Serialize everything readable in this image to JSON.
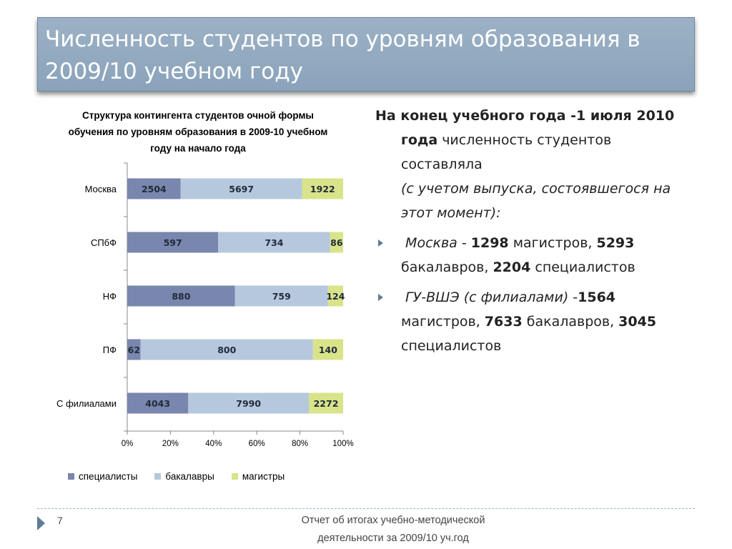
{
  "title": "Численность студентов по уровням образования в 2009/10 учебном году",
  "chart_data": {
    "type": "bar",
    "orientation": "horizontal",
    "stacking": "percent",
    "title": "Структура контингента студентов очной формы обучения по уровням образования в 2009-10 учебном году на начало года",
    "categories": [
      "Москва",
      "СПбФ",
      "НФ",
      "ПФ",
      "С филиалами"
    ],
    "series": [
      {
        "name": "специалисты",
        "color": "#7986ad",
        "values": [
          2504,
          597,
          880,
          62,
          4043
        ]
      },
      {
        "name": "бакалавры",
        "color": "#b6c8dd",
        "values": [
          5697,
          734,
          759,
          800,
          7990
        ]
      },
      {
        "name": "магистры",
        "color": "#d9e38a",
        "values": [
          1922,
          86,
          124,
          140,
          2272
        ]
      }
    ],
    "x_ticks": [
      "0%",
      "20%",
      "40%",
      "60%",
      "80%",
      "100%"
    ],
    "xlim": [
      0,
      100
    ],
    "grid": false,
    "legend_position": "bottom"
  },
  "text": {
    "p1_bold": "На конец учебного года -1 июля 2010 года",
    "p1_rest": " численность студентов составляла",
    "p1_italic": "(с учетом выпуска, состоявшегося на этот момент):",
    "b1_italic": "Москва",
    "b1_dash": " - ",
    "b1_v1": "1298",
    "b1_t1": " магистров, ",
    "b1_v2": "5293",
    "b1_t2": " бакалавров, ",
    "b1_v3": "2204",
    "b1_t3": " специалистов",
    "b2_italic": "ГУ-ВШЭ (с филиалами)",
    "b2_dash": " -",
    "b2_v1": "1564",
    "b2_t1": " магистров, ",
    "b2_v2": "7633",
    "b2_t2": " бакалавров, ",
    "b2_v3": "3045",
    "b2_t3": " специалистов"
  },
  "footer": {
    "page_number": "7",
    "line1": "Отчет об итогах учебно-методической",
    "line2": "деятельности за 2009/10 уч.год"
  }
}
